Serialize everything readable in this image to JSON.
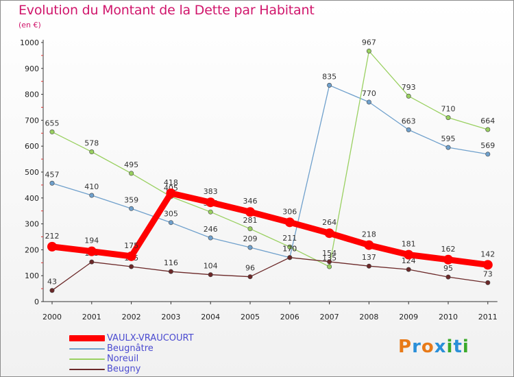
{
  "header": {
    "title": "Evolution du Montant de la Dette par Habitant",
    "unit": "(en €)"
  },
  "logo": {
    "text": "Proxiti",
    "colors": [
      "#e87a18",
      "#2a8fd8",
      "#e87a18",
      "#2a8fd8",
      "#3aaa2a",
      "#2a8fd8",
      "#3aaa2a"
    ]
  },
  "colors": {
    "title": "#d0156b",
    "legend_text": "#4a4ad0"
  },
  "chart_data": {
    "type": "line",
    "title": "Evolution du Montant de la Dette par Habitant",
    "ylabel": "(en €)",
    "xlabel": "",
    "ylim": [
      0,
      1000
    ],
    "yticks": [
      0,
      100,
      200,
      300,
      400,
      500,
      600,
      700,
      800,
      900,
      1000
    ],
    "grid": false,
    "legend_position": "bottom-left",
    "x": [
      "2000",
      "2001",
      "2002",
      "2003",
      "2004",
      "2005",
      "2006",
      "2007",
      "2008",
      "2009",
      "2010",
      "2011"
    ],
    "series": [
      {
        "name": "VAULX-VRAUCOURT",
        "color": "#ff0000",
        "emphasis": true,
        "values": [
          212,
          194,
          175,
          418,
          383,
          346,
          306,
          264,
          218,
          181,
          162,
          142
        ]
      },
      {
        "name": "Beugnâtre",
        "color": "#6fa0cc",
        "values": [
          457,
          410,
          359,
          305,
          246,
          209,
          170,
          835,
          770,
          663,
          595,
          569
        ]
      },
      {
        "name": "Noreuil",
        "color": "#99d060",
        "values": [
          655,
          578,
          495,
          405,
          346,
          281,
          211,
          135,
          967,
          793,
          710,
          664
        ]
      },
      {
        "name": "Beugny",
        "color": "#6b2828",
        "values": [
          43,
          153,
          135,
          116,
          104,
          96,
          170,
          154,
          137,
          124,
          95,
          73
        ]
      }
    ]
  }
}
